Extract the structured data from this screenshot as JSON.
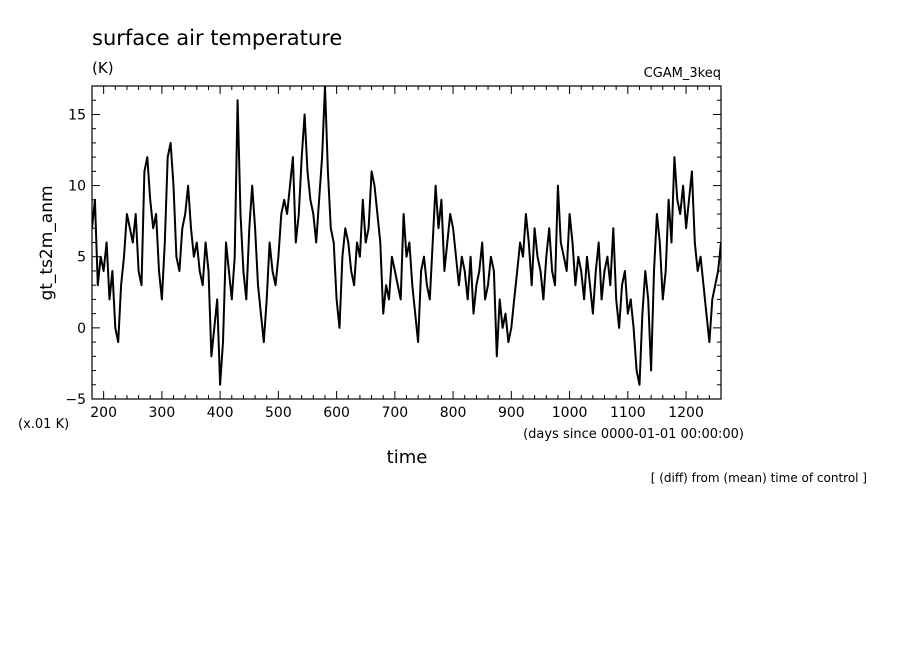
{
  "chart_data": {
    "type": "line",
    "title": "surface air temperature",
    "units": "(K)",
    "experiment": "CGAM_3keq",
    "xlabel": "time",
    "xlabel_units": "(days since 0000-01-01 00:00:00)",
    "ylabel": "gt_ts2m_anm",
    "yscale_note": "(x.01 K)",
    "footnote": "[ (diff) from (mean) time of control ]",
    "xlim": [
      180,
      1260
    ],
    "ylim": [
      -5,
      17
    ],
    "xticks": [
      200,
      300,
      400,
      500,
      600,
      700,
      800,
      900,
      1000,
      1100,
      1200
    ],
    "yticks": [
      -5,
      0,
      5,
      10,
      15
    ],
    "grid": false,
    "line_color": "#000000",
    "series": [
      {
        "x": [
          180,
          185,
          190,
          195,
          200,
          205,
          210,
          215,
          220,
          225,
          230,
          235,
          240,
          245,
          250,
          255,
          260,
          265,
          270,
          275,
          280,
          285,
          290,
          295,
          300,
          305,
          310,
          315,
          320,
          325,
          330,
          335,
          340,
          345,
          350,
          355,
          360,
          365,
          370,
          375,
          380,
          385,
          390,
          395,
          400,
          405,
          410,
          415,
          420,
          425,
          430,
          435,
          440,
          445,
          450,
          455,
          460,
          465,
          470,
          475,
          480,
          485,
          490,
          495,
          500,
          505,
          510,
          515,
          520,
          525,
          530,
          535,
          540,
          545,
          550,
          555,
          560,
          565,
          570,
          575,
          580,
          585,
          590,
          595,
          600,
          605,
          610,
          615,
          620,
          625,
          630,
          635,
          640,
          645,
          650,
          655,
          660,
          665,
          670,
          675,
          680,
          685,
          690,
          695,
          700,
          705,
          710,
          715,
          720,
          725,
          730,
          735,
          740,
          745,
          750,
          755,
          760,
          765,
          770,
          775,
          780,
          785,
          790,
          795,
          800,
          805,
          810,
          815,
          820,
          825,
          830,
          835,
          840,
          845,
          850,
          855,
          860,
          865,
          870,
          875,
          880,
          885,
          890,
          895,
          900,
          905,
          910,
          915,
          920,
          925,
          930,
          935,
          940,
          945,
          950,
          955,
          960,
          965,
          970,
          975,
          980,
          985,
          990,
          995,
          1000,
          1005,
          1010,
          1015,
          1020,
          1025,
          1030,
          1035,
          1040,
          1045,
          1050,
          1055,
          1060,
          1065,
          1070,
          1075,
          1080,
          1085,
          1090,
          1095,
          1100,
          1105,
          1110,
          1115,
          1120,
          1125,
          1130,
          1135,
          1140,
          1145,
          1150,
          1155,
          1160,
          1165,
          1170,
          1175,
          1180,
          1185,
          1190,
          1195,
          1200,
          1205,
          1210,
          1215,
          1220,
          1225,
          1230,
          1235,
          1240,
          1245,
          1250,
          1255,
          1260
        ],
        "y": [
          7,
          9,
          3,
          5,
          4,
          6,
          2,
          4,
          0,
          -1,
          3,
          5,
          8,
          7,
          6,
          8,
          4,
          3,
          11,
          12,
          9,
          7,
          8,
          4,
          2,
          6,
          12,
          13,
          10,
          5,
          4,
          7,
          8,
          10,
          7,
          5,
          6,
          4,
          3,
          6,
          4,
          -2,
          0,
          2,
          -4,
          -1,
          6,
          4,
          2,
          5,
          16,
          8,
          4,
          2,
          7,
          10,
          7,
          3,
          1,
          -1,
          2,
          6,
          4,
          3,
          5,
          8,
          9,
          8,
          10,
          12,
          6,
          8,
          12,
          15,
          11,
          9,
          8,
          6,
          9,
          12,
          17,
          11,
          7,
          6,
          2,
          0,
          5,
          7,
          6,
          4,
          3,
          6,
          5,
          9,
          6,
          7,
          11,
          10,
          8,
          6,
          1,
          3,
          2,
          5,
          4,
          3,
          2,
          8,
          5,
          6,
          3,
          1,
          -1,
          4,
          5,
          3,
          2,
          6,
          10,
          7,
          9,
          4,
          6,
          8,
          7,
          5,
          3,
          5,
          4,
          2,
          5,
          1,
          3,
          4,
          6,
          2,
          3,
          5,
          4,
          -2,
          2,
          0,
          1,
          -1,
          0,
          2,
          4,
          6,
          5,
          8,
          6,
          3,
          7,
          5,
          4,
          2,
          5,
          7,
          4,
          3,
          10,
          6,
          5,
          4,
          8,
          6,
          3,
          5,
          4,
          2,
          5,
          3,
          1,
          4,
          6,
          2,
          4,
          5,
          3,
          7,
          2,
          0,
          3,
          4,
          1,
          2,
          0,
          -3,
          -4,
          1,
          4,
          2,
          -3,
          4,
          8,
          6,
          2,
          4,
          9,
          6,
          12,
          9,
          8,
          10,
          7,
          9,
          11,
          6,
          4,
          5,
          3,
          1,
          -1,
          2,
          3,
          4,
          6
        ]
      }
    ]
  }
}
